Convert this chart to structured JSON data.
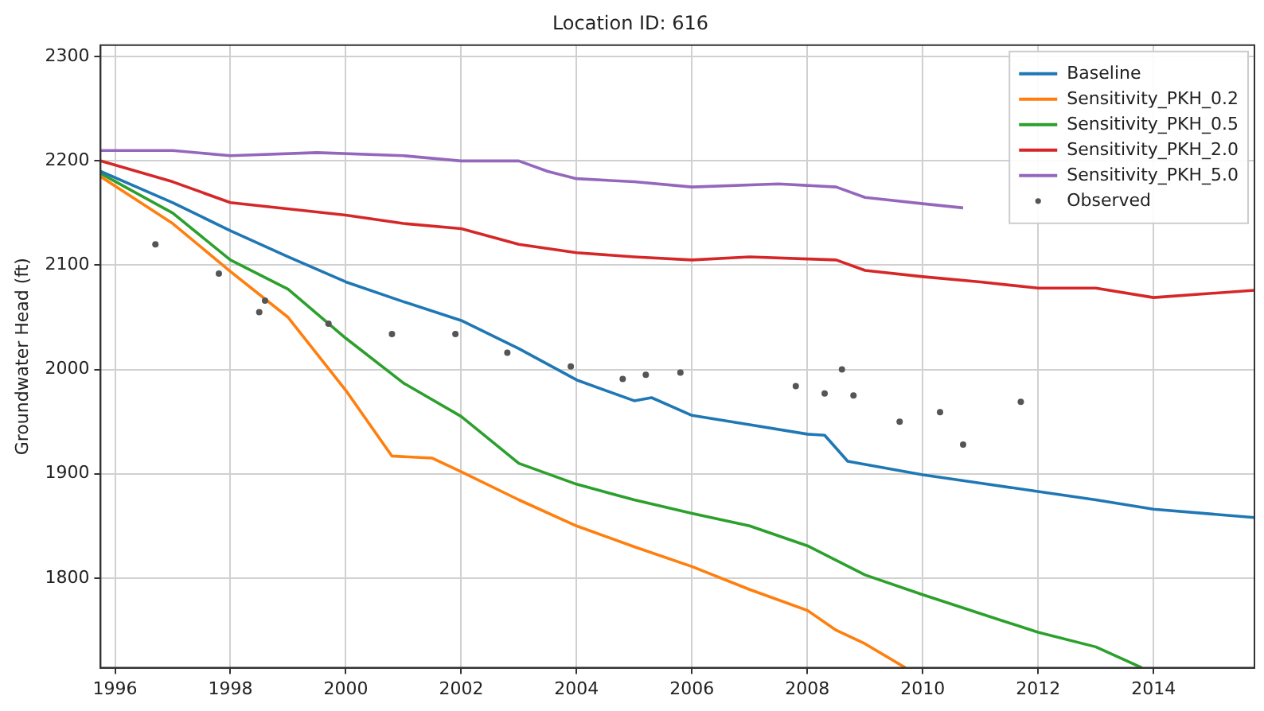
{
  "chart_data": {
    "type": "line",
    "title": "Location ID: 616",
    "ylabel": "Groundwater Head (ft)",
    "xlim": [
      1995.75,
      2015.75
    ],
    "xticks": [
      1996,
      1998,
      2000,
      2002,
      2004,
      2006,
      2008,
      2010,
      2012,
      2014
    ],
    "ylim": [
      1714,
      2311
    ],
    "yticks": [
      1800,
      1900,
      2000,
      2100,
      2200,
      2300
    ],
    "grid": true,
    "legend": "top right",
    "line_style": "solid",
    "series": [
      {
        "name": "Baseline",
        "color": "#1f77b4",
        "x": [
          1995.75,
          1997,
          1998,
          1999,
          2000,
          2001,
          2002,
          2003,
          2004,
          2005,
          2005.3,
          2006,
          2007,
          2008,
          2008.3,
          2008.7,
          2010,
          2011,
          2012,
          2013,
          2014,
          2015.75
        ],
        "values": [
          2190,
          2160,
          2133,
          2108,
          2084,
          2065,
          2047,
          2020,
          1990,
          1970,
          1973,
          1956,
          1947,
          1938,
          1937,
          1912,
          1899,
          1891,
          1883,
          1875,
          1866,
          1858
        ]
      },
      {
        "name": "Sensitivity_PKH_0.2",
        "color": "#ff7f0e",
        "x": [
          1995.75,
          1997,
          1998,
          1999,
          2000,
          2000.8,
          2001.5,
          2002,
          2003,
          2004,
          2005,
          2006,
          2007,
          2008,
          2008.5,
          2009,
          2009.7
        ],
        "values": [
          2185,
          2140,
          2094,
          2050,
          1980,
          1917,
          1915,
          1902,
          1875,
          1850,
          1830,
          1811,
          1789,
          1769,
          1750,
          1737,
          1714
        ]
      },
      {
        "name": "Sensitivity_PKH_0.5",
        "color": "#2ca02c",
        "x": [
          1995.75,
          1997,
          1998,
          1999,
          2000,
          2001,
          2002,
          2003,
          2004,
          2005,
          2006,
          2007,
          2008,
          2009,
          2010,
          2011,
          2012,
          2013,
          2013.8
        ],
        "values": [
          2188,
          2150,
          2105,
          2077,
          2030,
          1987,
          1955,
          1910,
          1890,
          1875,
          1862,
          1850,
          1831,
          1803,
          1784,
          1766,
          1748,
          1734,
          1714
        ]
      },
      {
        "name": "Sensitivity_PKH_2.0",
        "color": "#d62728",
        "x": [
          1995.75,
          1997,
          1998,
          2000,
          2001,
          2002,
          2003,
          2004,
          2005,
          2006,
          2007,
          2008,
          2008.5,
          2009,
          2010,
          2011,
          2012,
          2013,
          2014,
          2015.75
        ],
        "values": [
          2200,
          2180,
          2160,
          2148,
          2140,
          2135,
          2120,
          2112,
          2108,
          2105,
          2108,
          2106,
          2105,
          2095,
          2089,
          2084,
          2078,
          2078,
          2069,
          2076
        ]
      },
      {
        "name": "Sensitivity_PKH_5.0",
        "color": "#9467bd",
        "x": [
          1995.75,
          1997,
          1998,
          1999.5,
          2001,
          2002,
          2003,
          2003.5,
          2004,
          2005,
          2006,
          2007.5,
          2008.5,
          2009,
          2010,
          2010.7
        ],
        "values": [
          2210,
          2210,
          2205,
          2208,
          2205,
          2200,
          2200,
          2190,
          2183,
          2180,
          2175,
          2178,
          2175,
          2165,
          2159,
          2155
        ]
      },
      {
        "name": "Observed",
        "type": "scatter",
        "marker": "circle",
        "color": "#555555",
        "x": [
          1996.7,
          1997.8,
          1998.6,
          1998.5,
          1999.7,
          2000.8,
          2001.9,
          2002.8,
          2003.9,
          2004.8,
          2005.2,
          2005.8,
          2007.8,
          2008.3,
          2008.6,
          2008.8,
          2009.6,
          2010.3,
          2010.7,
          2011.7
        ],
        "values": [
          2120,
          2092,
          2066,
          2055,
          2044,
          2034,
          2034,
          2016,
          2003,
          1991,
          1995,
          1997,
          1984,
          1977,
          2000,
          1975,
          1950,
          1959,
          1928,
          1969
        ]
      }
    ]
  }
}
